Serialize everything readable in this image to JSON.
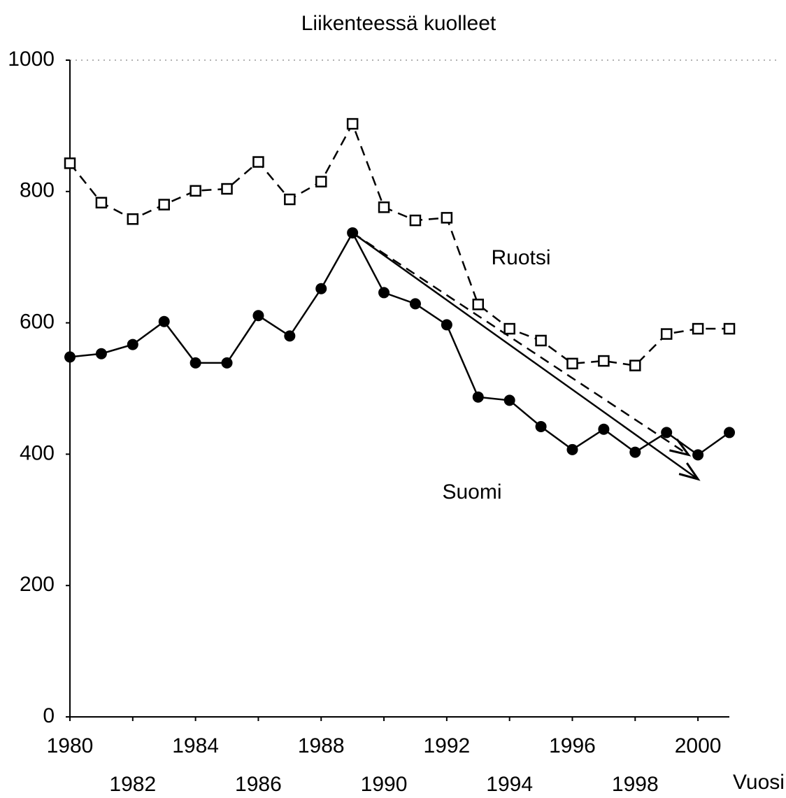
{
  "chart_data": {
    "type": "line",
    "title": "Liikenteessä kuolleet",
    "x_label": "Vuosi",
    "x": [
      1980,
      1981,
      1982,
      1983,
      1984,
      1985,
      1986,
      1987,
      1988,
      1989,
      1990,
      1991,
      1992,
      1993,
      1994,
      1995,
      1996,
      1997,
      1998,
      1999,
      2000,
      2001
    ],
    "series": [
      {
        "name": "Ruotsi",
        "color": "#000000",
        "marker": "open-square",
        "dash": true,
        "values": [
          843,
          783,
          758,
          780,
          801,
          804,
          845,
          788,
          815,
          903,
          776,
          756,
          760,
          628,
          591,
          573,
          538,
          542,
          535,
          583,
          591,
          591
        ]
      },
      {
        "name": "Suomi",
        "color": "#000000",
        "marker": "filled-circle",
        "dash": false,
        "values": [
          548,
          553,
          567,
          602,
          539,
          539,
          611,
          580,
          652,
          737,
          646,
          629,
          597,
          487,
          482,
          442,
          407,
          438,
          403,
          433,
          399,
          433
        ]
      }
    ],
    "trend_arrows": [
      {
        "from": [
          1989,
          737
        ],
        "to": [
          2000,
          362
        ],
        "dash": false
      },
      {
        "from": [
          1989,
          737
        ],
        "to": [
          1999.7,
          399
        ],
        "dash": true
      }
    ],
    "xlim": [
      1980,
      2001
    ],
    "xticks": [
      1980,
      1982,
      1984,
      1986,
      1988,
      1990,
      1992,
      1994,
      1996,
      1998,
      2000
    ],
    "ylim": [
      0,
      1000
    ],
    "yticks": [
      0,
      200,
      400,
      600,
      800,
      1000
    ],
    "grid": false
  }
}
